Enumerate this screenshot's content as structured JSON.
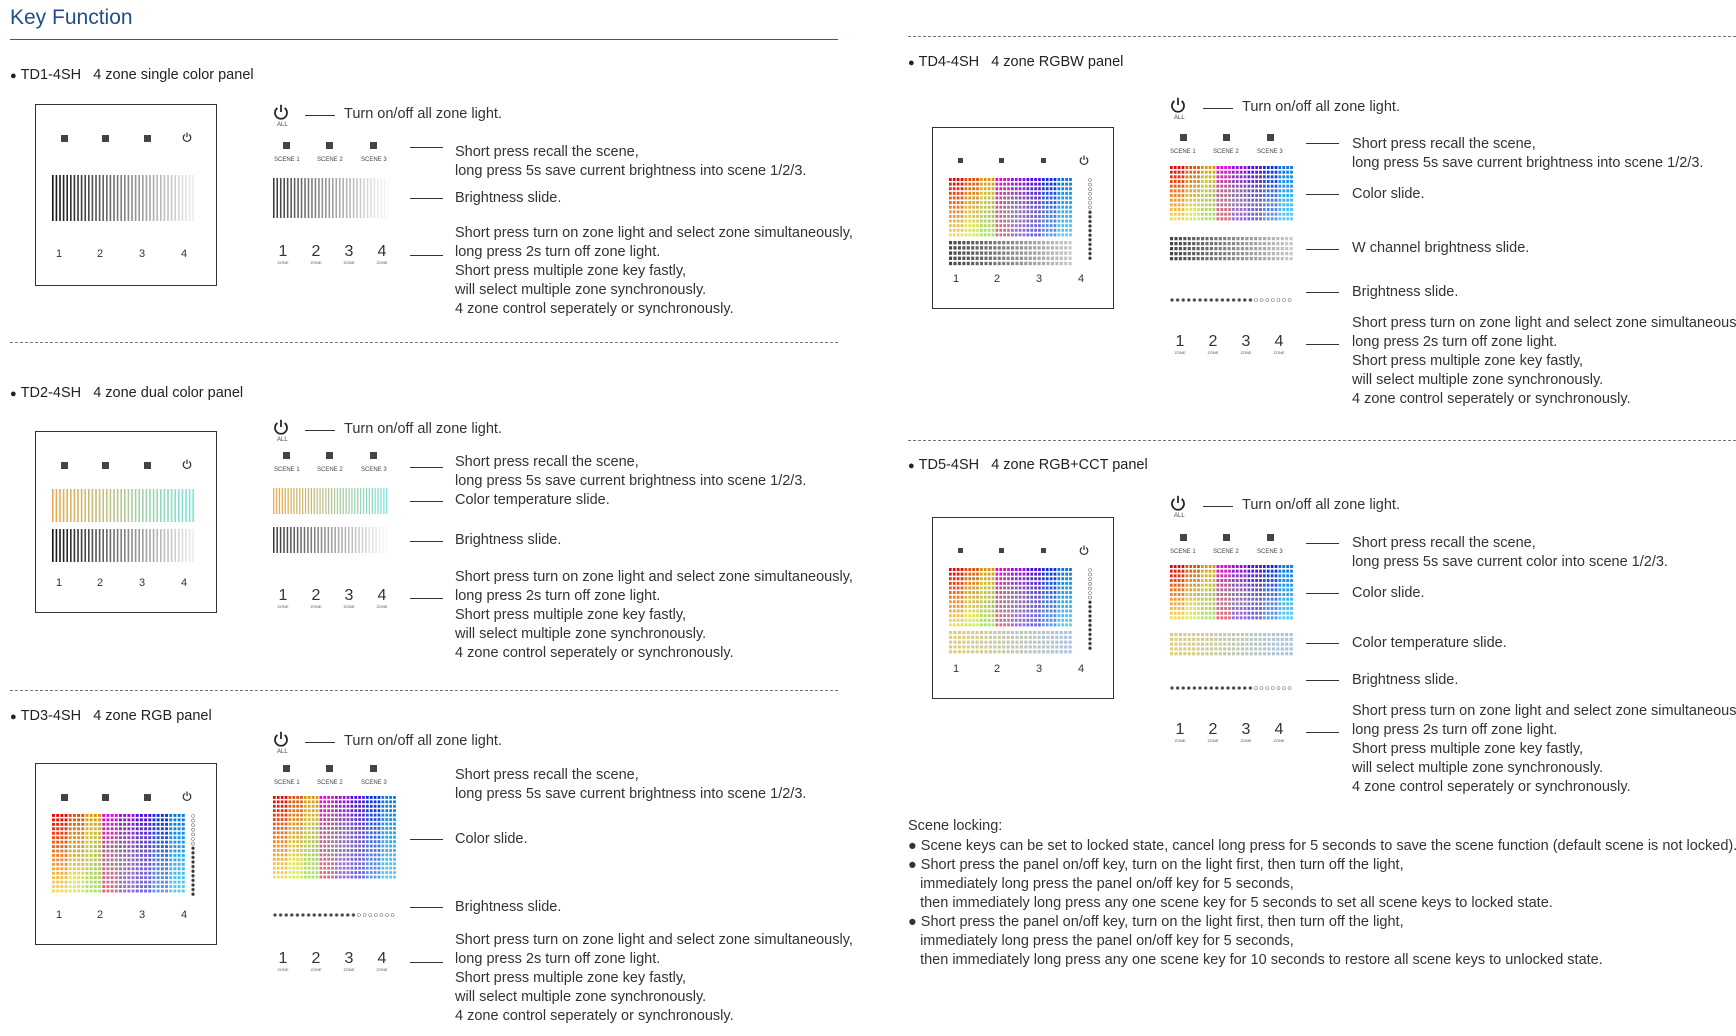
{
  "doc": {
    "title": "Key Function",
    "common": {
      "power_label": "ALL",
      "scene_labels": [
        "SCENE 1",
        "SCENE 2",
        "SCENE 3"
      ],
      "zone_numbers": [
        "1",
        "2",
        "3",
        "4"
      ],
      "zone_label": "ZONE",
      "turn_on_off": "Turn on/off all zone light.",
      "zone_desc": [
        "Short press turn on zone light and select zone simultaneously,",
        "long press 2s turn off zone light.",
        "Short press multiple zone key fastly,",
        "will select multiple zone synchronously.",
        "4 zone control seperately or synchronously."
      ]
    },
    "sections": {
      "td1": {
        "model": "TD1-4SH",
        "name": "4 zone single color panel",
        "scene_desc": [
          "Short press recall the scene,",
          "long press 5s save current brightness into scene 1/2/3."
        ],
        "slides": [
          "Brightness slide."
        ]
      },
      "td2": {
        "model": "TD2-4SH",
        "name": "4 zone dual color panel",
        "scene_desc": [
          "Short press recall the scene,",
          "long press 5s save current brightness into scene 1/2/3."
        ],
        "slides": [
          "Color temperature slide.",
          "Brightness slide."
        ]
      },
      "td3": {
        "model": "TD3-4SH",
        "name": "4 zone RGB panel",
        "scene_desc": [
          "Short press recall the scene,",
          "long press 5s save current brightness into scene 1/2/3."
        ],
        "slides": [
          "Color slide.",
          "Brightness slide."
        ]
      },
      "td4": {
        "model": "TD4-4SH",
        "name": "4 zone RGBW panel",
        "scene_desc": [
          "Short press recall the scene,",
          "long press 5s save current brightness into scene 1/2/3."
        ],
        "slides": [
          "Color slide.",
          "W channel brightness slide.",
          "Brightness slide."
        ]
      },
      "td5": {
        "model": "TD5-4SH",
        "name": "4 zone RGB+CCT panel",
        "scene_desc": [
          "Short press recall the scene,",
          "long press 5s save current color into scene 1/2/3."
        ],
        "slides": [
          "Color slide.",
          "Color temperature slide.",
          "Brightness slide."
        ]
      }
    },
    "scene_locking": {
      "title": "Scene locking:",
      "lines": [
        "● Scene keys can be set to locked state, cancel long press for 5 seconds to save the scene function (default scene is not locked).",
        "● Short press the panel on/off key, turn on the light first, then turn off the light,",
        "   immediately long press the panel on/off key for 5 seconds,",
        "   then immediately long press any one scene key for 5 seconds to set all scene keys to locked state.",
        "● Short press the panel on/off key, turn on the light first, then turn off the light,",
        "   immediately long press the panel on/off key for 5 seconds,",
        "   then immediately long press any one scene key for 10 seconds to restore all scene keys to unlocked state."
      ]
    },
    "colors": {
      "title_blue": "#1f4e8c",
      "rule_blue": "#2a5b9b",
      "text": "#333333"
    },
    "icons": [
      "power-icon",
      "scene-key-icon",
      "brightness-gradient-icon",
      "color-gradient-icon",
      "color-temperature-gradient-icon",
      "dot-slider-icon"
    ]
  }
}
